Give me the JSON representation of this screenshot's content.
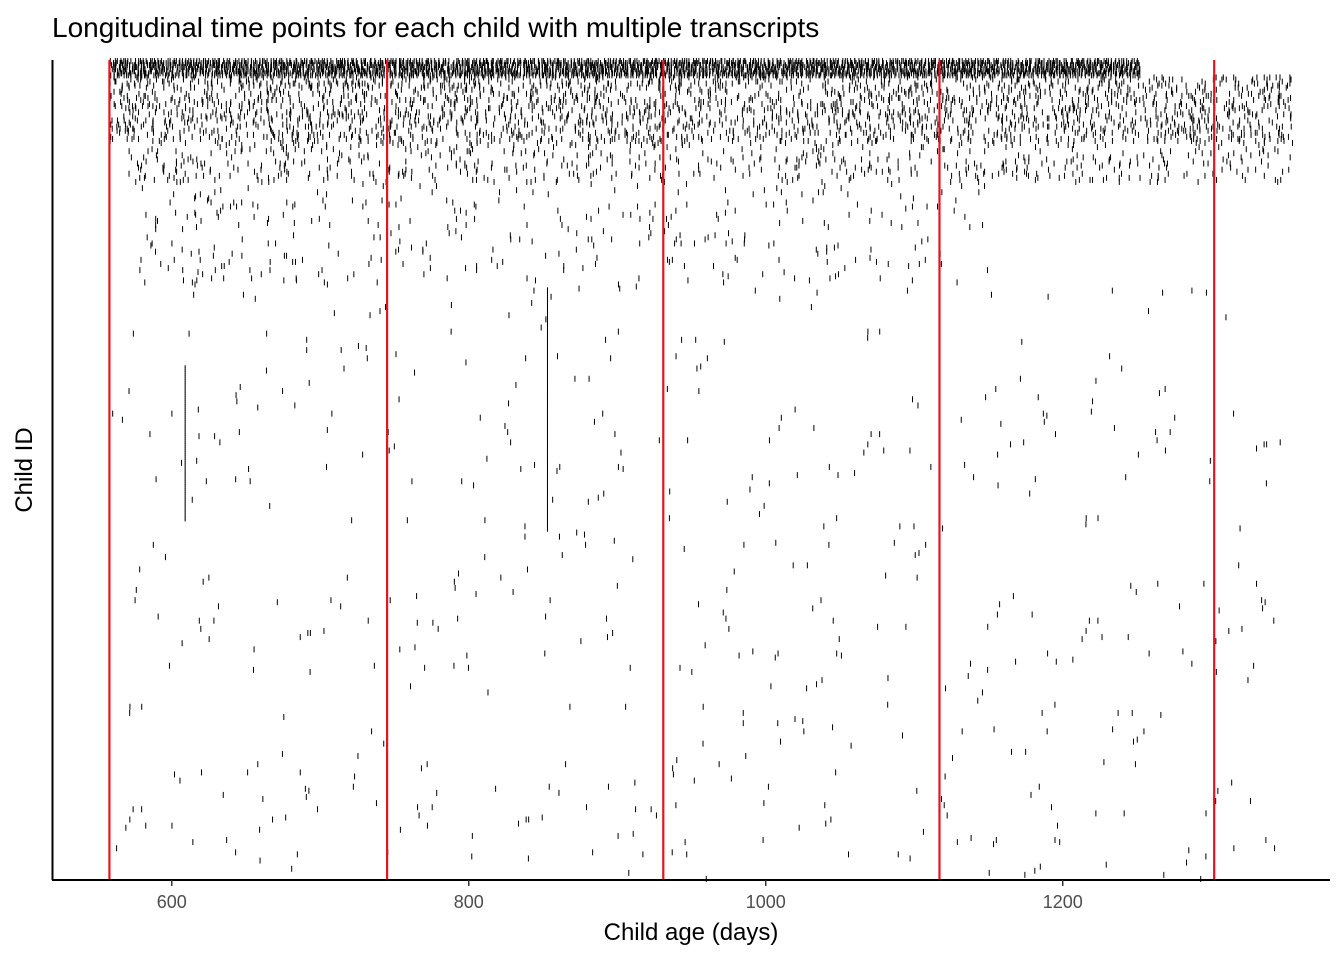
{
  "chart_data": {
    "type": "scatter",
    "title": "Longitudinal time points for each child with multiple transcripts",
    "xlabel": "Child age (days)",
    "ylabel": "Child ID",
    "xlim": [
      520,
      1380
    ],
    "x_ticks": [
      600,
      800,
      1000,
      1200
    ],
    "x_tick_labels": [
      "600",
      "800",
      "1000",
      "1200"
    ],
    "y_axis_ticks_shown": false,
    "grid": false,
    "legend": "none",
    "reference_lines": {
      "color": "#e8141b",
      "orientation": "vertical",
      "x": [
        558,
        745,
        931,
        1117,
        1302
      ]
    },
    "mark_color": "#000000",
    "mark_shape": "short vertical tick",
    "child_count": 400,
    "series": [
      {
        "child_range": [
          1,
          8
        ],
        "x_start": 558,
        "x_end": 1250,
        "density": 0.95,
        "x_step": 2
      },
      {
        "child_range": [
          9,
          40
        ],
        "x_start": 558,
        "x_end": 1350,
        "density": 0.35,
        "x_step": 4
      },
      {
        "child_range": [
          41,
          60
        ],
        "x_start": 570,
        "x_end": 1350,
        "density": 0.18,
        "x_step": 5
      },
      {
        "child_range": [
          61,
          110
        ],
        "x_start": 575,
        "x_end": 1150,
        "density": 0.06,
        "x_step": 6
      },
      {
        "child_range": [
          111,
          400
        ],
        "x_start": 560,
        "x_end": 1350,
        "density": 0.015,
        "x_step": 7
      }
    ],
    "long_runs": [
      {
        "x": 609,
        "child_range": [
          150,
          225
        ]
      },
      {
        "x": 853,
        "child_range": [
          112,
          230
        ]
      }
    ]
  }
}
